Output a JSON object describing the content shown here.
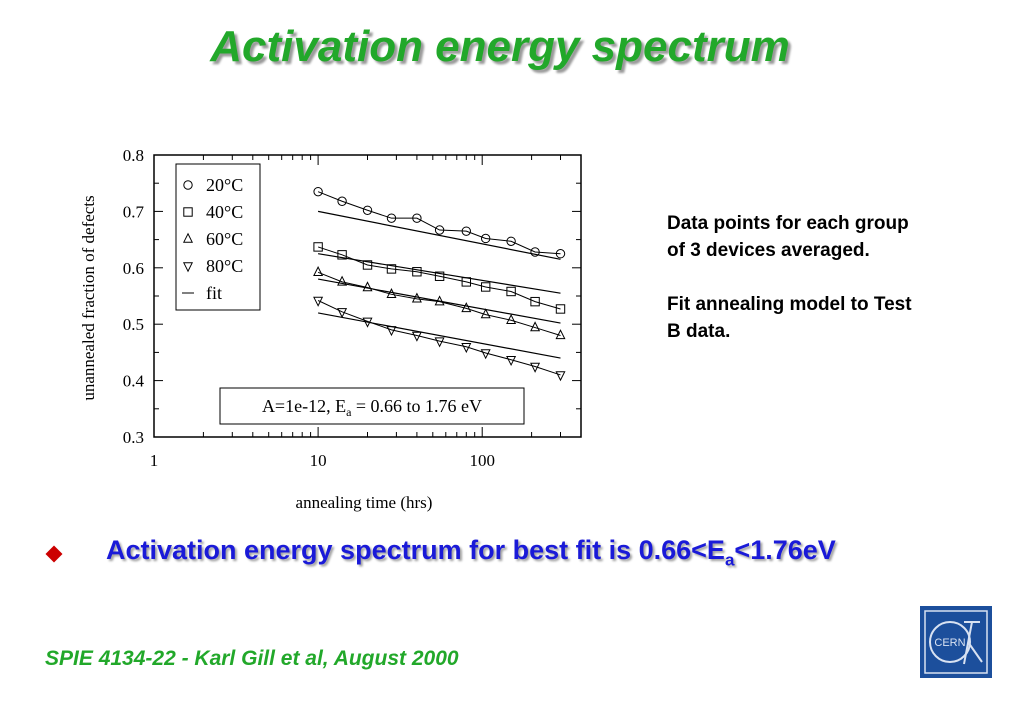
{
  "slide": {
    "title": "Activation energy spectrum",
    "side_notes": [
      "Data points for each group of 3 devices averaged.",
      "Fit annealing model to Test B data."
    ],
    "bullet": {
      "prefix": "Activation energy spectrum for best fit is 0.66<E",
      "sub": "a",
      "suffix": "<1.76eV"
    },
    "footer": "SPIE 4134-22 - Karl Gill et al, August 2000",
    "logo_text": "CERN",
    "colors": {
      "title": "#22a82a",
      "bullet_text": "#1a1ad8",
      "bullet_marker": "#cc0000",
      "logo_bg": "#1c4f9c"
    }
  },
  "chart_data": {
    "type": "scatter",
    "xlabel": "annealing time (hrs)",
    "ylabel": "unannealed fraction of defects",
    "xscale": "log",
    "xlim": [
      1,
      400
    ],
    "ylim": [
      0.3,
      0.8
    ],
    "xticks": [
      "1",
      "10",
      "100"
    ],
    "yticks": [
      "0.3",
      "0.4",
      "0.5",
      "0.6",
      "0.7",
      "0.8"
    ],
    "legend_position": "top-left",
    "annotation": {
      "prefix": "A=1e-12, E",
      "sub": "a",
      "suffix": " = 0.66 to 1.76 eV"
    },
    "series": [
      {
        "name": "20°C",
        "marker": "circle",
        "x": [
          10,
          14,
          20,
          28,
          40,
          55,
          80,
          105,
          150,
          210,
          300
        ],
        "y": [
          0.735,
          0.718,
          0.702,
          0.688,
          0.688,
          0.667,
          0.665,
          0.652,
          0.647,
          0.628,
          0.625
        ]
      },
      {
        "name": "40°C",
        "marker": "square",
        "x": [
          10,
          14,
          20,
          28,
          40,
          55,
          80,
          105,
          150,
          210,
          300
        ],
        "y": [
          0.637,
          0.623,
          0.605,
          0.598,
          0.593,
          0.585,
          0.575,
          0.566,
          0.558,
          0.54,
          0.527
        ]
      },
      {
        "name": "60°C",
        "marker": "triangle-up",
        "x": [
          10,
          14,
          20,
          28,
          40,
          55,
          80,
          105,
          150,
          210,
          300
        ],
        "y": [
          0.592,
          0.575,
          0.565,
          0.553,
          0.545,
          0.54,
          0.528,
          0.517,
          0.507,
          0.494,
          0.48
        ]
      },
      {
        "name": "80°C",
        "marker": "triangle-down",
        "x": [
          10,
          14,
          20,
          28,
          40,
          55,
          80,
          105,
          150,
          210,
          300
        ],
        "y": [
          0.542,
          0.522,
          0.505,
          0.49,
          0.48,
          0.47,
          0.46,
          0.449,
          0.437,
          0.425,
          0.41
        ]
      },
      {
        "name": "fit",
        "marker": "line",
        "lines": [
          {
            "x": [
              10,
              300
            ],
            "y": [
              0.7,
              0.615
            ]
          },
          {
            "x": [
              10,
              300
            ],
            "y": [
              0.625,
              0.555
            ]
          },
          {
            "x": [
              10,
              300
            ],
            "y": [
              0.58,
              0.502
            ]
          },
          {
            "x": [
              10,
              300
            ],
            "y": [
              0.52,
              0.44
            ]
          }
        ]
      }
    ]
  }
}
